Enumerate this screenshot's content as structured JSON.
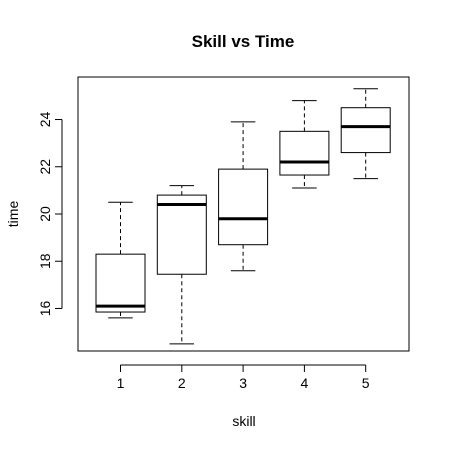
{
  "chart_data": {
    "type": "boxplot",
    "title": "Skill vs Time",
    "xlabel": "skill",
    "ylabel": "time",
    "categories": [
      "1",
      "2",
      "3",
      "4",
      "5"
    ],
    "yticks": [
      16,
      18,
      20,
      22,
      24
    ],
    "ylim": [
      14.2,
      25.8
    ],
    "boxes": [
      {
        "category": "1",
        "whisker_low": 15.6,
        "q1": 15.85,
        "median": 16.1,
        "q3": 18.3,
        "whisker_high": 20.5
      },
      {
        "category": "2",
        "whisker_low": 14.5,
        "q1": 17.45,
        "median": 20.4,
        "q3": 20.8,
        "whisker_high": 21.2
      },
      {
        "category": "3",
        "whisker_low": 17.6,
        "q1": 18.7,
        "median": 19.8,
        "q3": 21.9,
        "whisker_high": 23.9
      },
      {
        "category": "4",
        "whisker_low": 21.1,
        "q1": 21.65,
        "median": 22.2,
        "q3": 23.5,
        "whisker_high": 24.8
      },
      {
        "category": "5",
        "whisker_low": 21.5,
        "q1": 22.6,
        "median": 23.7,
        "q3": 24.5,
        "whisker_high": 25.3
      }
    ],
    "grid": false,
    "colors": {
      "box_fill": "#ffffff",
      "stroke": "#000000"
    }
  }
}
